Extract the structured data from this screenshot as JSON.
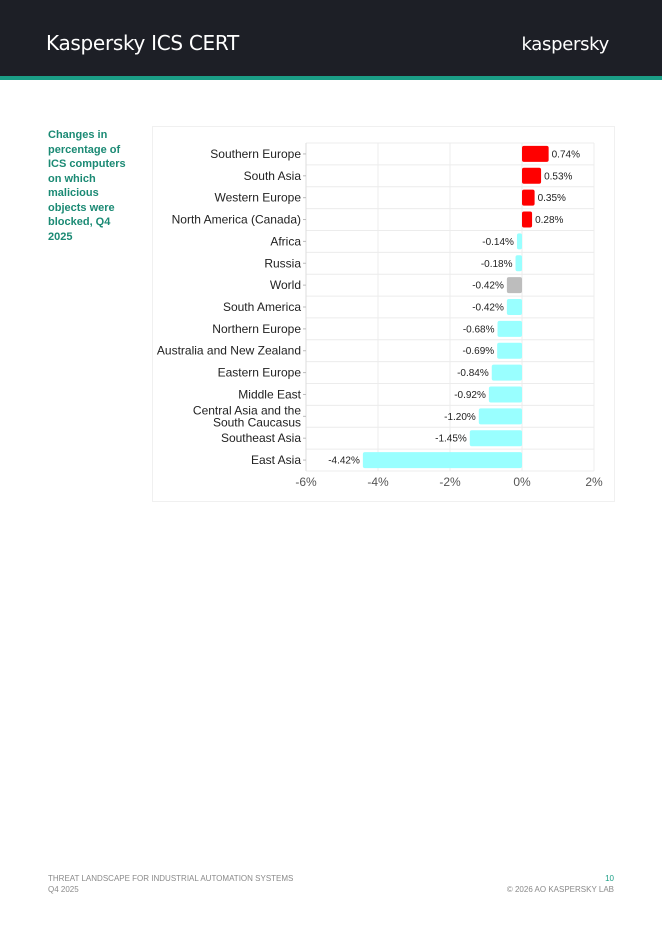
{
  "header": {
    "title": "Kaspersky ICS CERT",
    "logo_text": "kaspersky"
  },
  "caption": "Changes in percentage of ICS computers on which malicious objects were blocked, Q4 2025",
  "colors": {
    "positive": "#ff0000",
    "negative": "#99ffff",
    "world": "#bdbdbd",
    "accent": "#1b9e86",
    "header_bg": "#1d1f26"
  },
  "chart_data": {
    "type": "bar",
    "orientation": "horizontal",
    "categories": [
      "Southern Europe",
      "South Asia",
      "Western Europe",
      "North America (Canada)",
      "Africa",
      "Russia",
      "World",
      "South America",
      "Northern Europe",
      "Australia and New Zealand",
      "Eastern Europe",
      "Middle East",
      "Central Asia and the South Caucasus",
      "Southeast Asia",
      "East Asia"
    ],
    "values": [
      0.74,
      0.53,
      0.35,
      0.28,
      -0.14,
      -0.18,
      -0.42,
      -0.42,
      -0.68,
      -0.69,
      -0.84,
      -0.92,
      -1.2,
      -1.45,
      -4.42
    ],
    "labels": [
      "0.74%",
      "0.53%",
      "0.35%",
      "0.28%",
      "-0.14%",
      "-0.18%",
      "-0.42%",
      "-0.42%",
      "-0.68%",
      "-0.69%",
      "-0.84%",
      "-0.92%",
      "-1.20%",
      "-1.45%",
      "-4.42%"
    ],
    "xlim": [
      -6,
      2
    ],
    "xticks": [
      "-6%",
      "-4%",
      "-2%",
      "0%",
      "2%"
    ],
    "xtick_values": [
      -6,
      -4,
      -2,
      0,
      2
    ],
    "grid": true,
    "highlight": "World"
  },
  "footer": {
    "left_line1": "THREAT LANDSCAPE FOR INDUSTRIAL AUTOMATION SYSTEMS",
    "left_line2": "Q4 2025",
    "page_number": "10",
    "copyright": "© 2026 AO KASPERSKY LAB"
  }
}
